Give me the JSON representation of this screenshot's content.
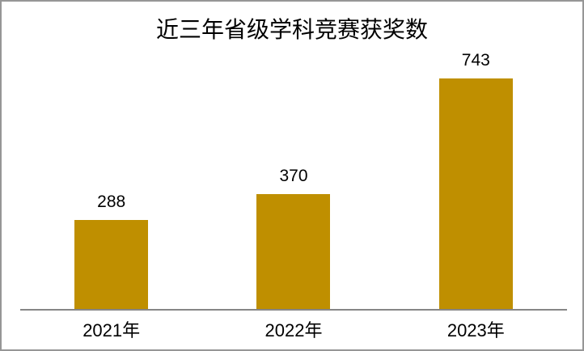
{
  "chart_data": {
    "type": "bar",
    "title": "近三年省级学科竞赛获奖数",
    "categories": [
      "2021年",
      "2022年",
      "2023年"
    ],
    "values": [
      288,
      370,
      743
    ],
    "series": [
      {
        "name": "获奖数",
        "values": [
          288,
          370,
          743
        ]
      }
    ],
    "xlabel": "",
    "ylabel": "",
    "ylim": [
      0,
      800
    ],
    "grid": false,
    "legend_visible": false,
    "value_labels_visible": true,
    "colors": {
      "bar": "#BF8F00",
      "axis_line": "#868686",
      "frame_border": "#969696",
      "text": "#000000",
      "background": "#FFFFFF"
    }
  }
}
